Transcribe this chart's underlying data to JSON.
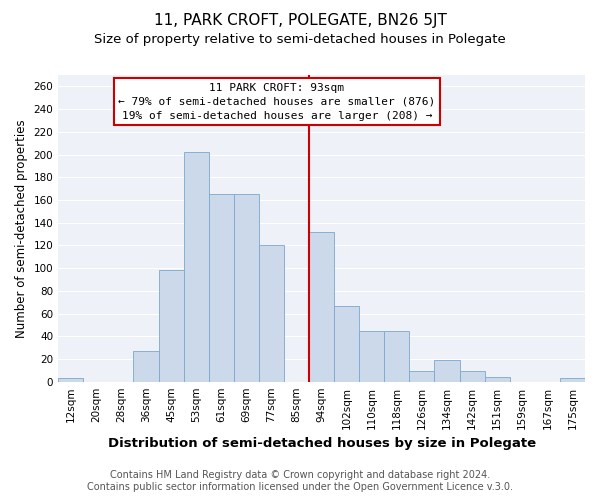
{
  "title": "11, PARK CROFT, POLEGATE, BN26 5JT",
  "subtitle": "Size of property relative to semi-detached houses in Polegate",
  "xlabel": "Distribution of semi-detached houses by size in Polegate",
  "ylabel": "Number of semi-detached properties",
  "bins": [
    "12sqm",
    "20sqm",
    "28sqm",
    "36sqm",
    "45sqm",
    "53sqm",
    "61sqm",
    "69sqm",
    "77sqm",
    "85sqm",
    "94sqm",
    "102sqm",
    "110sqm",
    "118sqm",
    "126sqm",
    "134sqm",
    "142sqm",
    "151sqm",
    "159sqm",
    "167sqm",
    "175sqm"
  ],
  "values": [
    3,
    0,
    0,
    27,
    98,
    202,
    165,
    165,
    120,
    0,
    132,
    67,
    45,
    45,
    9,
    19,
    9,
    4,
    0,
    0,
    3
  ],
  "bar_color": "#ccd9ea",
  "bar_edge_color": "#7ca8cc",
  "vline_x_index": 10,
  "vline_color": "#cc0000",
  "annotation_title": "11 PARK CROFT: 93sqm",
  "annotation_line1": "← 79% of semi-detached houses are smaller (876)",
  "annotation_line2": "19% of semi-detached houses are larger (208) →",
  "annotation_box_color": "#ffffff",
  "annotation_box_edge": "#cc0000",
  "ylim": [
    0,
    270
  ],
  "yticks": [
    0,
    20,
    40,
    60,
    80,
    100,
    120,
    140,
    160,
    180,
    200,
    220,
    240,
    260
  ],
  "footer1": "Contains HM Land Registry data © Crown copyright and database right 2024.",
  "footer2": "Contains public sector information licensed under the Open Government Licence v.3.0.",
  "title_fontsize": 11,
  "subtitle_fontsize": 9.5,
  "xlabel_fontsize": 9.5,
  "ylabel_fontsize": 8.5,
  "tick_fontsize": 7.5,
  "footer_fontsize": 7,
  "annot_fontsize": 8
}
